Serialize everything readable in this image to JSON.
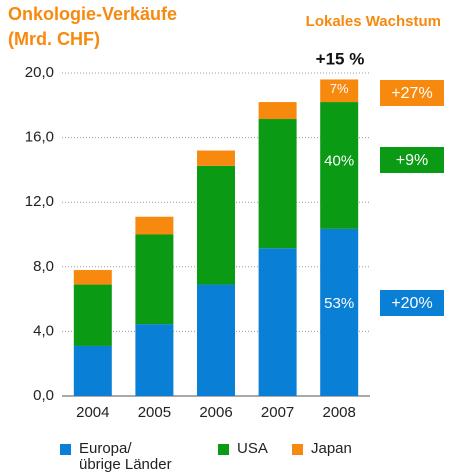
{
  "chart_data": {
    "type": "stacked_bar",
    "title": "Onkologie-Verkäufe\n(Mrd. CHF)",
    "subtitle": "Lokales Wachstum",
    "categories": [
      "2004",
      "2005",
      "2006",
      "2007",
      "2008"
    ],
    "series": [
      {
        "name": "Europa/\nübrige Länder",
        "color": "#0a7fd6",
        "values": [
          3.1,
          4.45,
          6.9,
          9.15,
          10.35
        ]
      },
      {
        "name": "USA",
        "color": "#0a9a14",
        "values": [
          3.8,
          5.55,
          7.35,
          8.0,
          7.85
        ]
      },
      {
        "name": "Japan",
        "color": "#f7890f",
        "values": [
          0.9,
          1.1,
          0.95,
          1.05,
          1.4
        ]
      }
    ],
    "ylim": [
      0,
      20
    ],
    "yticks": [
      {
        "value": 0,
        "label": "0,0"
      },
      {
        "value": 4,
        "label": "4,0"
      },
      {
        "value": 8,
        "label": "8,0"
      },
      {
        "value": 12,
        "label": "12,0"
      },
      {
        "value": 16,
        "label": "16,0"
      },
      {
        "value": 20,
        "label": "20,0"
      }
    ],
    "grid": true,
    "share_labels": [
      "53%",
      "40%",
      "7%"
    ],
    "total_growth": "+15 %",
    "growth_labels": [
      "+20%",
      "+9%",
      "+27%"
    ]
  }
}
